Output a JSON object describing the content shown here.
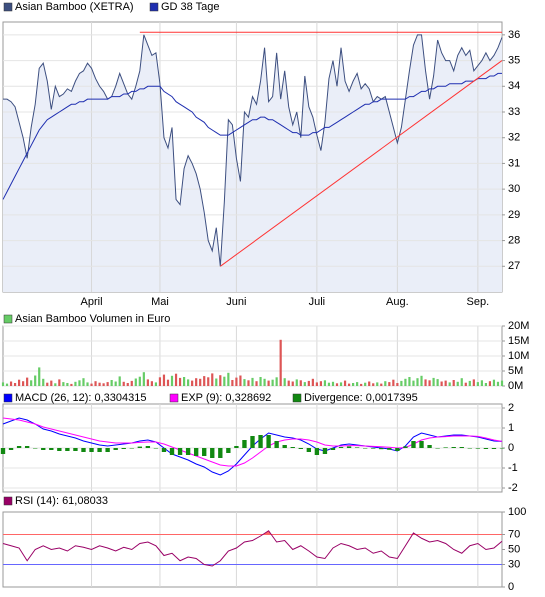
{
  "chart_data": [
    {
      "type": "line",
      "grid": true,
      "ylim": [
        26,
        36.5
      ],
      "yticks": [
        27,
        28,
        29,
        30,
        31,
        32,
        33,
        34,
        35,
        36
      ],
      "xticks": [
        {
          "value": 22,
          "label": "April"
        },
        {
          "value": 39,
          "label": "Mai"
        },
        {
          "value": 58,
          "label": "Juni"
        },
        {
          "value": 78,
          "label": "Juli"
        },
        {
          "value": 98,
          "label": "Aug."
        },
        {
          "value": 118,
          "label": "Sep."
        }
      ],
      "series": [
        {
          "name": "Asian Bamboo (XETRA)",
          "color": "#3d4f80",
          "fill": "#eaeef8",
          "values": [
            33.5,
            33.5,
            33.4,
            33.2,
            32.6,
            32,
            31.2,
            32.4,
            33.3,
            34.7,
            34.9,
            34.2,
            33.1,
            34,
            33.6,
            33.7,
            33.9,
            33.8,
            34.2,
            34.5,
            34.6,
            34.9,
            34.7,
            34.3,
            34,
            33.8,
            33.5,
            33.6,
            34,
            34.5,
            34.1,
            33.7,
            33.5,
            34,
            34.6,
            36,
            35.6,
            35.2,
            35.3,
            34.1,
            32,
            31.6,
            32.4,
            29.6,
            29.4,
            30.8,
            31.3,
            31,
            30.6,
            30,
            29.1,
            28,
            27.6,
            28.5,
            27,
            29.5,
            32.7,
            32.5,
            31.2,
            30.3,
            33,
            32.8,
            33.6,
            33.3,
            34.2,
            35.5,
            33.4,
            33.6,
            35.3,
            33.5,
            34.6,
            33.2,
            32.5,
            33,
            32,
            34.4,
            33.2,
            32.8,
            32.1,
            31.5,
            32.6,
            34.3,
            35,
            34,
            35.5,
            34.2,
            33.8,
            34.2,
            34.5,
            33.9,
            34.1,
            33.9,
            33.4,
            33.6,
            33.5,
            33.6,
            33,
            32.4,
            31.8,
            32.4,
            33.5,
            34.6,
            35.6,
            36,
            36,
            34.6,
            33.5,
            34.4,
            35.8,
            35.3,
            35,
            35,
            34.6,
            35.2,
            35.5,
            35.2,
            35.4,
            34.6,
            34.8,
            35,
            35.3,
            35,
            35.2,
            35.5,
            35.9
          ]
        },
        {
          "name": "GD 38 Tage",
          "color": "#1f2fb0",
          "values": [
            29.6,
            29.9,
            30.2,
            30.5,
            30.8,
            31.1,
            31.4,
            31.7,
            32,
            32.3,
            32.5,
            32.7,
            32.8,
            32.9,
            33,
            33.1,
            33.2,
            33.3,
            33.3,
            33.4,
            33.4,
            33.5,
            33.5,
            33.5,
            33.5,
            33.5,
            33.5,
            33.6,
            33.6,
            33.6,
            33.7,
            33.7,
            33.8,
            33.8,
            33.9,
            33.9,
            34,
            34,
            34,
            34,
            33.8,
            33.7,
            33.6,
            33.4,
            33.3,
            33.2,
            33.1,
            33,
            32.8,
            32.7,
            32.6,
            32.4,
            32.3,
            32.2,
            32.1,
            32.1,
            32.1,
            32.2,
            32.3,
            32.4,
            32.5,
            32.6,
            32.7,
            32.7,
            32.8,
            32.8,
            32.7,
            32.7,
            32.6,
            32.5,
            32.4,
            32.3,
            32.2,
            32.2,
            32.1,
            32.1,
            32.1,
            32.2,
            32.2,
            32.3,
            32.4,
            32.4,
            32.5,
            32.6,
            32.7,
            32.8,
            32.9,
            33,
            33.1,
            33.2,
            33.3,
            33.3,
            33.4,
            33.4,
            33.5,
            33.5,
            33.5,
            33.5,
            33.5,
            33.5,
            33.5,
            33.6,
            33.6,
            33.7,
            33.8,
            33.8,
            33.9,
            33.9,
            34,
            34,
            34,
            34.1,
            34.1,
            34.1,
            34.1,
            34.2,
            34.2,
            34.2,
            34.3,
            34.3,
            34.3,
            34.4,
            34.4,
            34.5,
            34.5
          ]
        }
      ],
      "trend_lines": [
        {
          "color": "#ff3333",
          "x": [
            34,
            124
          ],
          "y": [
            36.1,
            36.1
          ]
        },
        {
          "color": "#ff3333",
          "x": [
            54,
            124
          ],
          "y": [
            27,
            35
          ]
        }
      ]
    },
    {
      "type": "bar",
      "grid": true,
      "up_color": "#66cc66",
      "down_color": "#dd5555",
      "ylim": [
        0,
        20
      ],
      "yticks": [
        {
          "value": 0,
          "label": "0M"
        },
        {
          "value": 5,
          "label": "5M"
        },
        {
          "value": 10,
          "label": "10M"
        },
        {
          "value": 15,
          "label": "15M"
        },
        {
          "value": 20,
          "label": "20M"
        }
      ],
      "series": [
        {
          "name": "Asian Bamboo Volumen in Euro",
          "color": "#66cc66",
          "values": [
            1.2,
            0.8,
            1.5,
            1.0,
            2.1,
            1.6,
            2.8,
            1.9,
            3.5,
            6.2,
            2.4,
            1.1,
            1.8,
            0.9,
            2.2,
            1.3,
            1.0,
            0.7,
            1.4,
            1.9,
            2.6,
            1.2,
            0.8,
            1.6,
            1.1,
            0.9,
            1.3,
            2.0,
            1.5,
            3.2,
            1.4,
            1.0,
            1.7,
            2.5,
            3.1,
            4.6,
            2.2,
            1.6,
            1.2,
            2.9,
            3.8,
            2.1,
            3.4,
            4.1,
            2.7,
            3.0,
            2.2,
            1.8,
            2.6,
            2.4,
            3.3,
            2.9,
            4.2,
            2.5,
            3.6,
            3.1,
            4.4,
            2.0,
            2.8,
            3.5,
            2.3,
            1.9,
            2.7,
            1.6,
            3.0,
            2.4,
            1.8,
            2.1,
            2.9,
            15.4,
            2.6,
            1.8,
            1.5,
            2.2,
            1.9,
            1.3,
            1.7,
            2.4,
            1.2,
            1.6,
            1.9,
            1.1,
            1.4,
            0.9,
            1.2,
            1.8,
            0.8,
            1.0,
            1.3,
            0.7,
            1.1,
            1.5,
            0.9,
            1.2,
            0.8,
            1.6,
            1.3,
            2.1,
            1.0,
            1.7,
            2.4,
            3.0,
            1.8,
            2.6,
            3.4,
            2.2,
            1.9,
            2.7,
            2.3,
            1.5,
            1.8,
            1.2,
            2.0,
            1.4,
            2.6,
            1.1,
            1.7,
            2.2,
            1.3,
            1.9,
            1.0,
            1.6,
            2.1,
            1.4,
            1.8
          ]
        }
      ]
    },
    {
      "type": "line",
      "grid": true,
      "ylim": [
        -2.2,
        2.2
      ],
      "yticks": [
        -2,
        -1,
        0,
        1,
        2
      ],
      "series": [
        {
          "name": "MACD (26, 12): 0,3304315",
          "color": "#0000ff",
          "values": [
            1.2,
            1.35,
            1.5,
            1.4,
            1.2,
            0.95,
            0.85,
            0.7,
            0.6,
            0.5,
            0.35,
            0.25,
            0.15,
            0.1,
            0.15,
            0.2,
            0.25,
            0.35,
            0.4,
            0.3,
            0,
            -0.3,
            -0.45,
            -0.6,
            -0.8,
            -0.95,
            -1.2,
            -1.35,
            -1.15,
            -0.8,
            -0.35,
            0.1,
            0.45,
            0.75,
            0.65,
            0.55,
            0.5,
            0.4,
            0.2,
            -0.05,
            -0.15,
            0,
            0.15,
            0.2,
            0.15,
            0.1,
            0.05,
            0,
            -0.05,
            -0.15,
            0.1,
            0.55,
            0.75,
            0.65,
            0.55,
            0.6,
            0.65,
            0.65,
            0.6,
            0.55,
            0.45,
            0.35,
            0.33
          ]
        },
        {
          "name": "EXP (9): 0,328692",
          "color": "#ff00ff",
          "values": [
            1.5,
            1.45,
            1.4,
            1.3,
            1.2,
            1.05,
            0.95,
            0.85,
            0.75,
            0.65,
            0.55,
            0.45,
            0.35,
            0.3,
            0.25,
            0.25,
            0.25,
            0.28,
            0.3,
            0.3,
            0.2,
            0.05,
            -0.1,
            -0.25,
            -0.4,
            -0.55,
            -0.7,
            -0.85,
            -0.9,
            -0.9,
            -0.75,
            -0.5,
            -0.2,
            0.1,
            0.3,
            0.4,
            0.45,
            0.45,
            0.4,
            0.3,
            0.15,
            0.1,
            0.1,
            0.12,
            0.12,
            0.1,
            0.08,
            0.06,
            0.04,
            0,
            0.02,
            0.2,
            0.4,
            0.5,
            0.55,
            0.57,
            0.6,
            0.6,
            0.6,
            0.58,
            0.5,
            0.4,
            0.33
          ]
        },
        {
          "name": "Divergence: 0,0017395",
          "color": "#118811",
          "type": "bar",
          "values": [
            -0.3,
            -0.1,
            0.1,
            0.1,
            0,
            -0.1,
            -0.1,
            -0.15,
            -0.15,
            -0.15,
            -0.2,
            -0.2,
            -0.2,
            -0.2,
            -0.1,
            -0.05,
            0,
            0.07,
            0.1,
            0,
            -0.2,
            -0.35,
            -0.35,
            -0.35,
            -0.4,
            -0.4,
            -0.5,
            -0.5,
            -0.25,
            0.1,
            0.4,
            0.6,
            0.65,
            0.65,
            0.35,
            0.15,
            0.05,
            -0.05,
            -0.2,
            -0.35,
            -0.3,
            -0.1,
            0.05,
            0.08,
            0.03,
            0,
            -0.03,
            -0.06,
            -0.09,
            -0.15,
            0.08,
            0.35,
            0.35,
            0.15,
            0,
            0.03,
            0.05,
            0.05,
            0,
            -0.03,
            -0.05,
            -0.05,
            0.0017
          ]
        }
      ]
    },
    {
      "type": "line",
      "grid": false,
      "ylim": [
        0,
        100
      ],
      "yticks": [
        0,
        30,
        50,
        70,
        100
      ],
      "ref_lines": [
        {
          "value": 70,
          "color": "#ff6666",
          "fill_above": "#ff6666"
        },
        {
          "value": 30,
          "color": "#6666ff"
        }
      ],
      "series": [
        {
          "name": "RSI (14): 61,08033",
          "color": "#990066",
          "values": [
            58,
            55,
            52,
            35,
            50,
            55,
            50,
            52,
            48,
            55,
            53,
            50,
            55,
            52,
            48,
            53,
            50,
            58,
            60,
            55,
            42,
            45,
            35,
            40,
            38,
            30,
            28,
            35,
            48,
            52,
            60,
            62,
            68,
            75,
            60,
            62,
            50,
            55,
            48,
            40,
            38,
            52,
            58,
            55,
            50,
            52,
            45,
            48,
            40,
            38,
            55,
            72,
            65,
            60,
            62,
            58,
            50,
            45,
            55,
            58,
            50,
            52,
            61
          ]
        }
      ]
    }
  ]
}
